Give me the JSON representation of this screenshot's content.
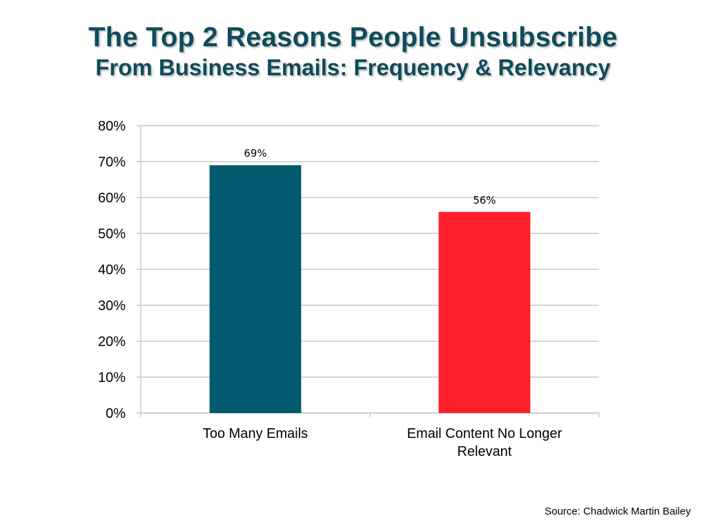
{
  "colors": {
    "title": "#0f4b5b",
    "grid": "#bdbdbd",
    "text": "#000000"
  },
  "header": {
    "title_line1": "The Top 2 Reasons People Unsubscribe",
    "title_line2": "From Business Emails: Frequency & Relevancy"
  },
  "footer": {
    "source": "Source: Chadwick Martin Bailey"
  },
  "chart_data": {
    "type": "bar",
    "categories": [
      [
        "Too Many Emails"
      ],
      [
        "Email Content No Longer",
        "Relevant"
      ]
    ],
    "values": [
      69,
      56
    ],
    "data_labels": [
      "69%",
      "56%"
    ],
    "bar_colors": [
      "#035a6e",
      "#ff1f2b"
    ],
    "ylim": [
      0,
      80
    ],
    "yticks": [
      0,
      10,
      20,
      30,
      40,
      50,
      60,
      70,
      80
    ],
    "ytick_labels": [
      "0%",
      "10%",
      "20%",
      "30%",
      "40%",
      "50%",
      "60%",
      "70%",
      "80%"
    ],
    "grid": true,
    "legend": "none"
  }
}
